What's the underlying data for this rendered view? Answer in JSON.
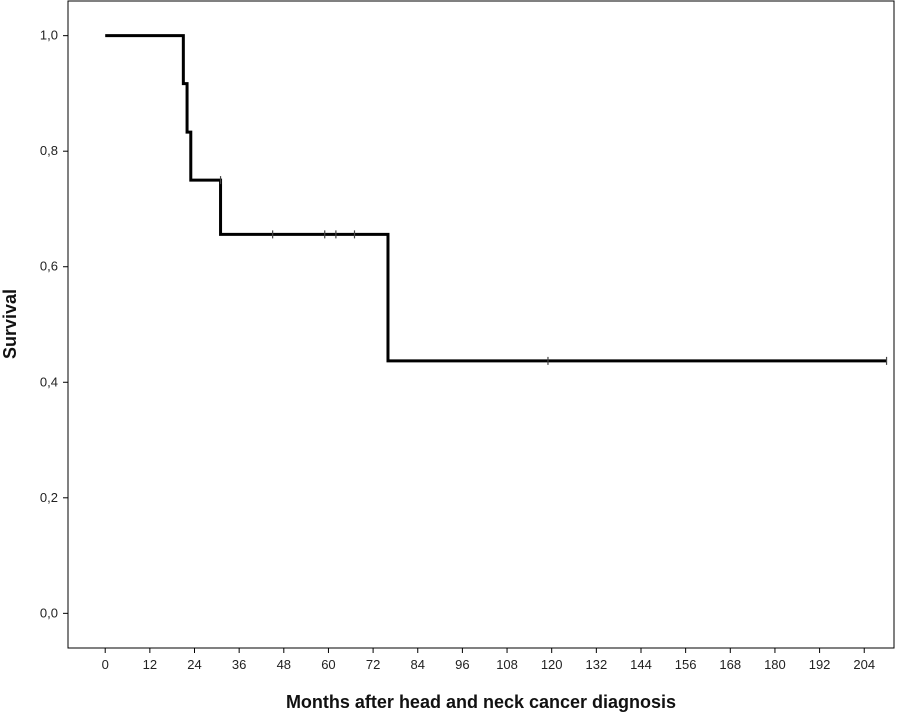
{
  "chart_data": {
    "type": "line",
    "title": "",
    "xlabel": "Months after head and neck cancer diagnosis",
    "ylabel": "Survival",
    "xlim": [
      -10,
      212
    ],
    "ylim": [
      -0.06,
      1.06
    ],
    "grid": false,
    "legend": "none",
    "line_color": "#000000",
    "x_ticks": [
      0,
      12,
      24,
      36,
      48,
      60,
      72,
      84,
      96,
      108,
      120,
      132,
      144,
      156,
      168,
      180,
      192,
      204
    ],
    "x_tick_labels": [
      "0",
      "12",
      "24",
      "36",
      "48",
      "60",
      "72",
      "84",
      "96",
      "108",
      "120",
      "132",
      "144",
      "156",
      "168",
      "180",
      "192",
      "204"
    ],
    "y_ticks": [
      0.0,
      0.2,
      0.4,
      0.6,
      0.8,
      1.0
    ],
    "y_tick_labels": [
      "0,0",
      "0,2",
      "0,4",
      "0,6",
      "0,8",
      "1,0"
    ],
    "series": [
      {
        "kind": "step",
        "x": [
          0,
          21,
          22,
          23,
          31,
          76,
          210
        ],
        "y": [
          1.0,
          0.917,
          0.833,
          0.75,
          0.656,
          0.437,
          0.437
        ]
      }
    ],
    "censored": [
      {
        "x": 31,
        "y": 0.75
      },
      {
        "x": 45,
        "y": 0.656
      },
      {
        "x": 59,
        "y": 0.656
      },
      {
        "x": 62,
        "y": 0.656
      },
      {
        "x": 67,
        "y": 0.656
      },
      {
        "x": 119,
        "y": 0.437
      },
      {
        "x": 210,
        "y": 0.437
      }
    ]
  }
}
